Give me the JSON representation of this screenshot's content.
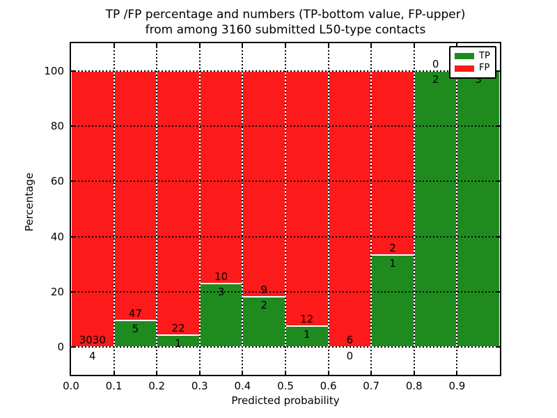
{
  "figure": {
    "title_line1": "TP /FP percentage and numbers (TP-bottom value, FP-upper)",
    "title_line2": "from among 3160 submitted L50-type contacts"
  },
  "chart_data": {
    "type": "bar",
    "stacked": true,
    "normalized_to_percent": true,
    "title": "TP /FP percentage and numbers (TP-bottom value, FP-upper) from among 3160 submitted L50-type contacts",
    "xlabel": "Predicted probability",
    "ylabel": "Percentage",
    "total_submitted": 3160,
    "bin_starts": [
      0.0,
      0.1,
      0.2,
      0.3,
      0.4,
      0.5,
      0.6,
      0.7,
      0.8,
      0.9
    ],
    "bin_width": 0.1,
    "series": [
      {
        "name": "TP",
        "color": "#1f8b1f",
        "counts": [
          4,
          5,
          1,
          3,
          2,
          1,
          0,
          1,
          2,
          3
        ]
      },
      {
        "name": "FP",
        "color": "#fc1a1a",
        "counts": [
          3030,
          47,
          22,
          10,
          9,
          12,
          6,
          2,
          0,
          0
        ]
      }
    ],
    "tp_percent_approx": [
      0.13,
      9.6,
      4.3,
      23.1,
      18.2,
      7.7,
      0.0,
      33.3,
      100.0,
      100.0
    ],
    "x_tick_labels": [
      "0.0",
      "0.1",
      "0.2",
      "0.3",
      "0.4",
      "0.5",
      "0.6",
      "0.7",
      "0.8",
      "0.9"
    ],
    "y_tick_labels": [
      "0",
      "20",
      "40",
      "60",
      "80",
      "100"
    ],
    "y_ticks": [
      0,
      20,
      40,
      60,
      80,
      100
    ],
    "xlim": [
      0.0,
      1.0
    ],
    "ylim": [
      -10,
      110
    ],
    "grid": "dotted",
    "bar_edge_color": "#ffffff",
    "legend": {
      "position": "upper right",
      "items": [
        {
          "label": "TP",
          "color": "#1f8b1f"
        },
        {
          "label": "FP",
          "color": "#fc1a1a"
        }
      ]
    }
  }
}
